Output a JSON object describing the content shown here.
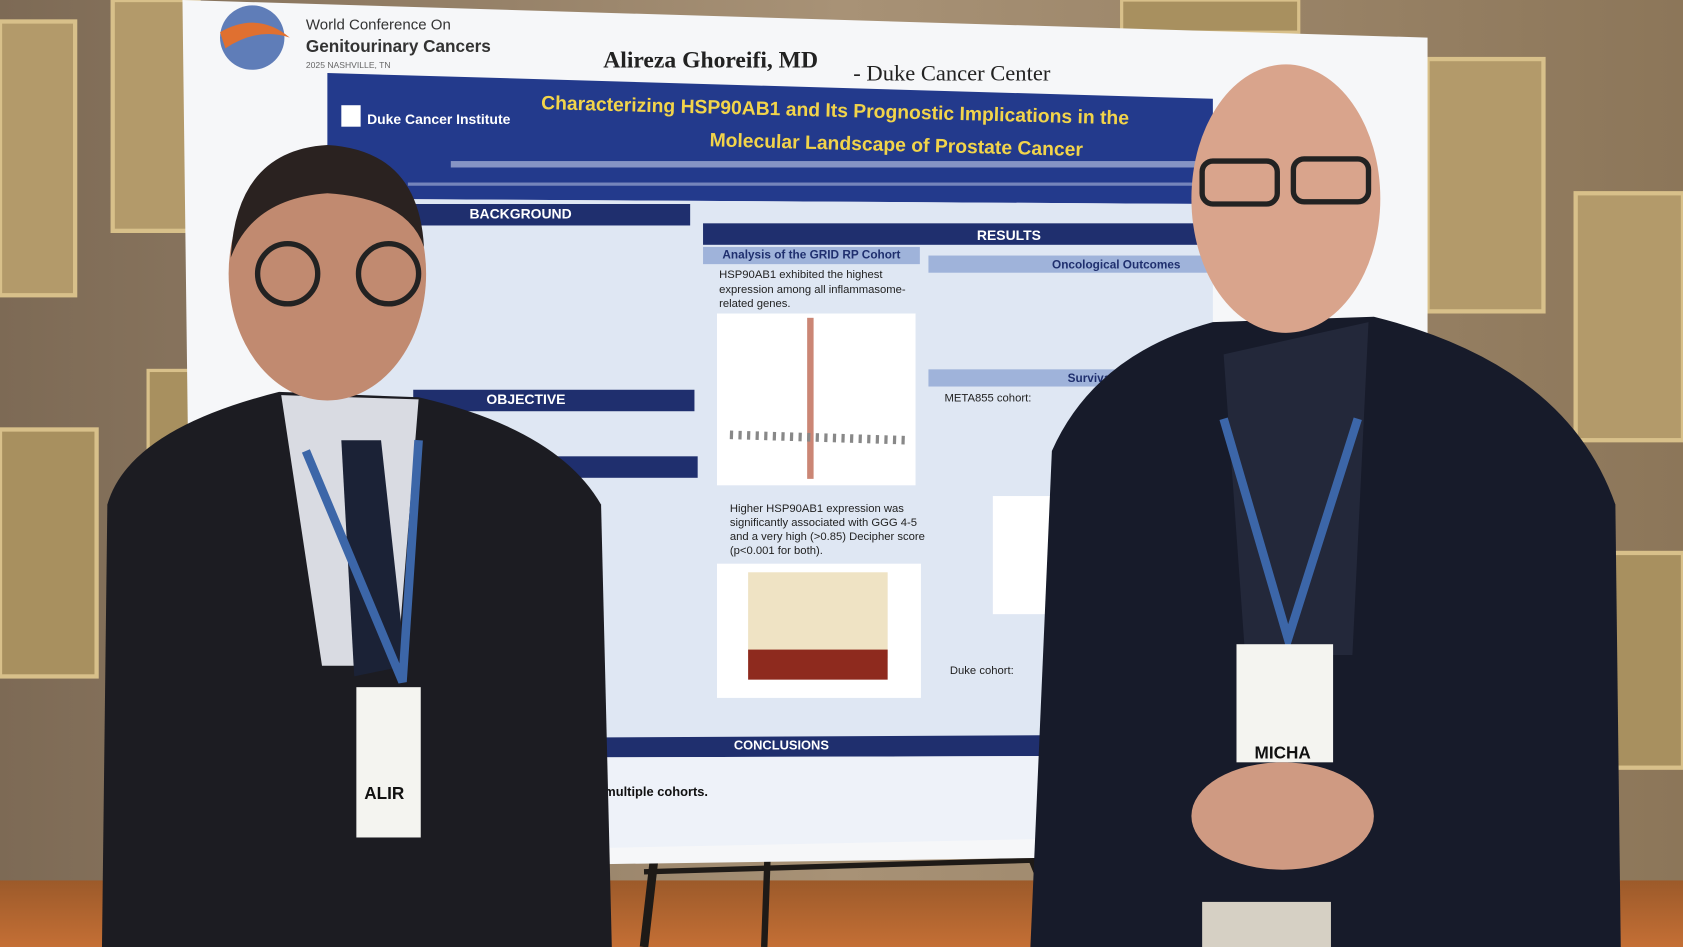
{
  "header": {
    "conference": [
      "World Conference On",
      "Genitourinary Cancers",
      "2025 NASHVILLE, TN"
    ],
    "presenter": "Alireza Ghoreifi, MD",
    "affiliation": "- Duke Cancer Center"
  },
  "poster": {
    "institute": "Duke Cancer Institute",
    "title_lines": [
      "Characterizing HSP90AB1 and Its Prognostic Implications in the",
      "Molecular Landscape of Prostate Cancer"
    ],
    "sections": [
      "BACKGROUND",
      "OBJECTIVE",
      "RESULTS",
      "CONCLUSIONS"
    ],
    "subsections": [
      "Analysis of the GRID RP Cohort",
      "Oncological Outcomes",
      "Survival Analysis"
    ],
    "grid_text_1": [
      "HSP90AB1 exhibited the highest",
      "expression among all inflammasome-",
      "related genes."
    ],
    "grid_text_2": [
      "Higher HSP90AB1 expression was",
      "significantly associated with GGG 4-5",
      "and a very high (>0.85) Decipher score",
      "(p<0.001 for both)."
    ],
    "survival_text": [
      "META855 cohort:",
      "Duke cohort:"
    ],
    "conclusion_text": [
      "multiple cohorts."
    ]
  },
  "badges": [
    "ALIR",
    "MICHA"
  ]
}
